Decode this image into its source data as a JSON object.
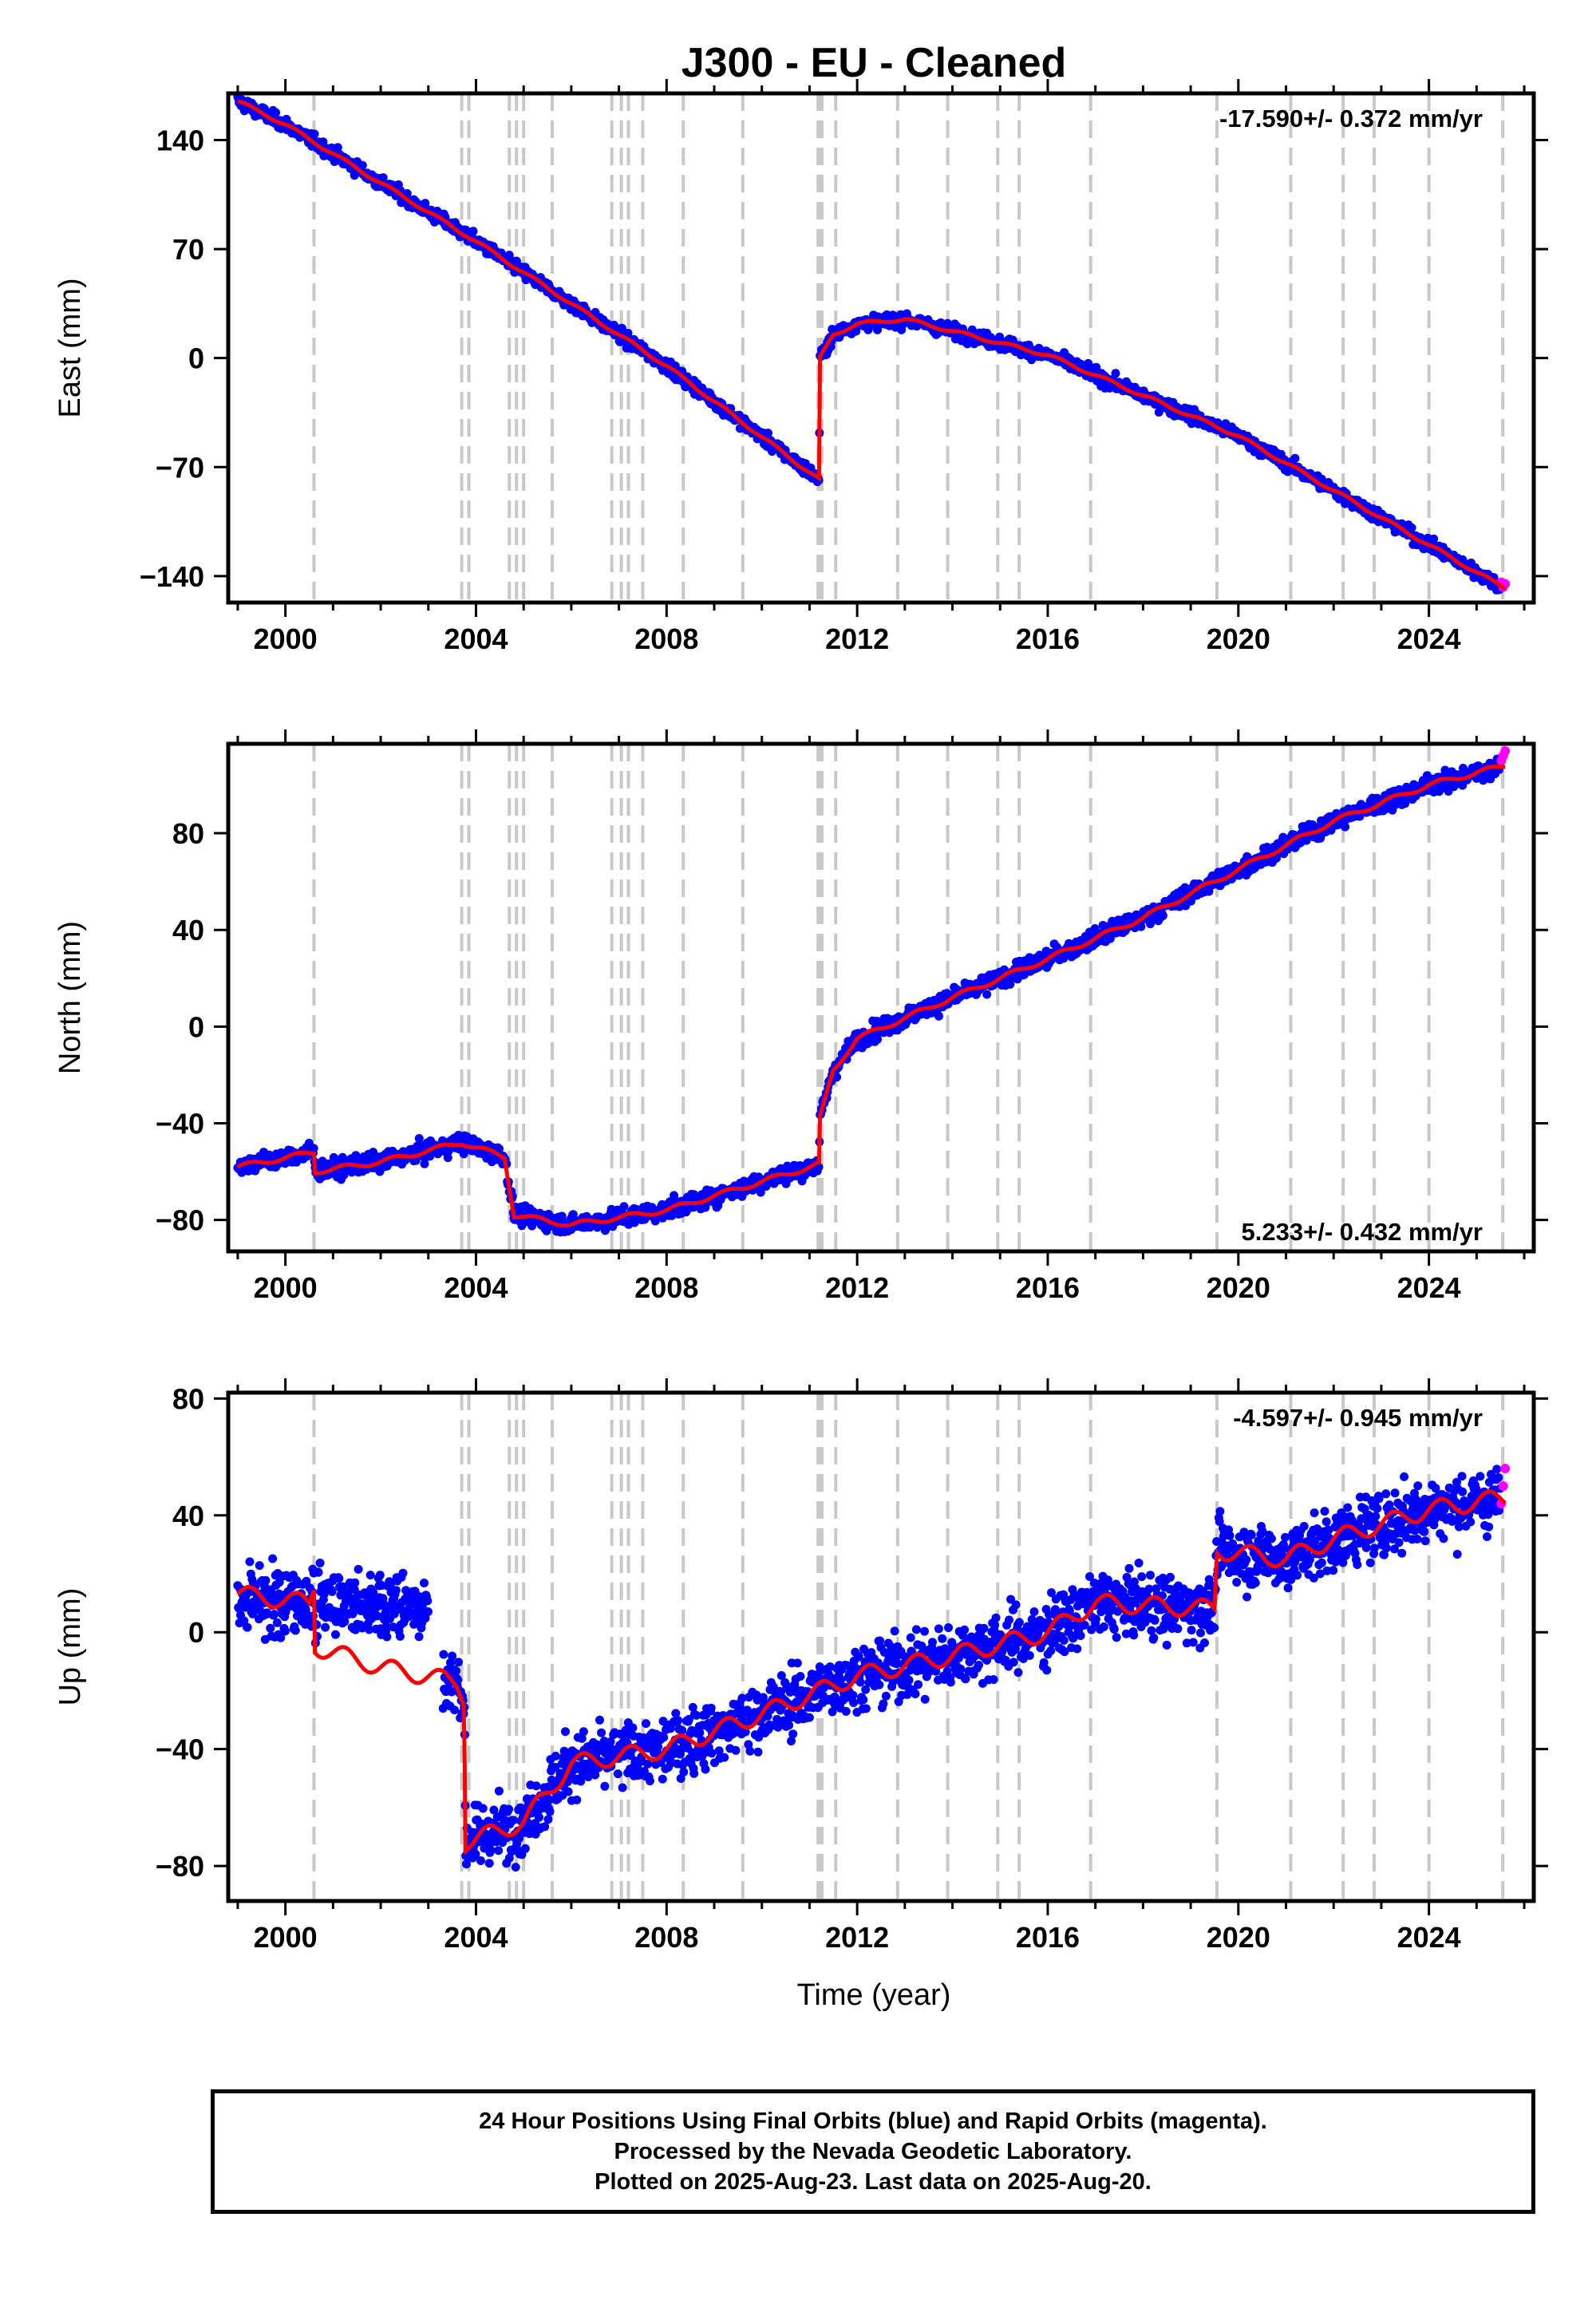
{
  "title": "J300  - EU - Cleaned",
  "xlabel": "Time (year)",
  "colors": {
    "final": "#0000ff",
    "rapid": "#ff00ff",
    "model": "#ff0000",
    "steps": "#c8c8c8",
    "frame": "#000000"
  },
  "caption": {
    "line1": "24 Hour Positions Using Final Orbits (blue) and Rapid Orbits (magenta).",
    "line2": "Processed by the Nevada Geodetic Laboratory.",
    "line3": "Plotted on 2025-Aug-23. Last data on 2025-Aug-20."
  },
  "chart_data": [
    {
      "type": "scatter",
      "component": "east",
      "ylabel": "East (mm)",
      "rate_label": "-17.590+/- 0.372 mm/yr",
      "xlim": [
        1998.8,
        2026.2
      ],
      "ylim": [
        -157,
        170
      ],
      "x_ticks": [
        2000,
        2004,
        2008,
        2012,
        2016,
        2020,
        2024
      ],
      "y_ticks": [
        140,
        70,
        0,
        -70,
        -140
      ],
      "y_tick_labels": [
        "140",
        "70",
        "0",
        "−70",
        "−140"
      ],
      "step_epochs": [
        2000.6,
        2003.7,
        2003.85,
        2004.7,
        2004.85,
        2005.0,
        2005.6,
        2006.85,
        2007.05,
        2007.2,
        2007.5,
        2008.35,
        2009.6,
        2011.18,
        2011.22,
        2011.26,
        2011.55,
        2012.85,
        2013.9,
        2014.95,
        2015.4,
        2016.9,
        2019.55,
        2021.1,
        2022.2,
        2022.85,
        2024.0,
        2025.55
      ],
      "model_anchors": [
        [
          1999.0,
          165
        ],
        [
          2000.0,
          150
        ],
        [
          2004.0,
          75
        ],
        [
          2008.0,
          -5
        ],
        [
          2011.2,
          -78
        ],
        [
          2011.22,
          0
        ],
        [
          2011.5,
          15
        ],
        [
          2012.0,
          22
        ],
        [
          2013.0,
          25
        ],
        [
          2016.0,
          2
        ],
        [
          2020.0,
          -50
        ],
        [
          2024.0,
          -120
        ],
        [
          2025.6,
          -148
        ]
      ],
      "scatter_noise": 3.0,
      "rapid_last": [
        [
          2025.52,
          -144
        ],
        [
          2025.56,
          -147
        ],
        [
          2025.6,
          -145
        ]
      ]
    },
    {
      "type": "scatter",
      "component": "north",
      "ylabel": "North (mm)",
      "rate_label": "5.233+/- 0.432 mm/yr",
      "xlim": [
        1998.8,
        2026.2
      ],
      "ylim": [
        -93,
        117
      ],
      "x_ticks": [
        2000,
        2004,
        2008,
        2012,
        2016,
        2020,
        2024
      ],
      "y_ticks": [
        80,
        40,
        0,
        -40,
        -80
      ],
      "y_tick_labels": [
        "80",
        "40",
        "0",
        "−40",
        "−80"
      ],
      "step_epochs": [
        2000.6,
        2003.7,
        2003.85,
        2004.7,
        2004.85,
        2005.0,
        2005.6,
        2006.85,
        2007.05,
        2007.2,
        2007.5,
        2008.35,
        2009.6,
        2011.18,
        2011.22,
        2011.26,
        2011.55,
        2012.85,
        2013.9,
        2014.95,
        2015.4,
        2016.9,
        2019.55,
        2021.1,
        2022.2,
        2022.85,
        2024.0,
        2025.55
      ],
      "model_anchors": [
        [
          1999.0,
          -58
        ],
        [
          2000.6,
          -52
        ],
        [
          2000.62,
          -60
        ],
        [
          2002.0,
          -56
        ],
        [
          2003.7,
          -48
        ],
        [
          2004.6,
          -54
        ],
        [
          2004.8,
          -78
        ],
        [
          2006.0,
          -82
        ],
        [
          2008.0,
          -76
        ],
        [
          2011.2,
          -57
        ],
        [
          2011.22,
          -38
        ],
        [
          2011.5,
          -18
        ],
        [
          2012.0,
          -5
        ],
        [
          2014.0,
          12
        ],
        [
          2016.0,
          28
        ],
        [
          2018.0,
          45
        ],
        [
          2020.0,
          65
        ],
        [
          2022.0,
          85
        ],
        [
          2024.0,
          100
        ],
        [
          2025.6,
          108
        ]
      ],
      "scatter_noise": 2.6,
      "rapid_last": [
        [
          2025.52,
          110
        ],
        [
          2025.56,
          112
        ],
        [
          2025.6,
          114
        ]
      ]
    },
    {
      "type": "scatter",
      "component": "up",
      "ylabel": "Up (mm)",
      "rate_label": "-4.597+/- 0.945 mm/yr",
      "xlim": [
        1998.8,
        2026.2
      ],
      "ylim": [
        -92,
        82
      ],
      "x_ticks": [
        2000,
        2004,
        2008,
        2012,
        2016,
        2020,
        2024
      ],
      "y_ticks": [
        80,
        40,
        0,
        -40,
        -80
      ],
      "y_tick_labels": [
        "80",
        "40",
        "0",
        "−40",
        "−80"
      ],
      "step_epochs": [
        2000.6,
        2003.7,
        2003.85,
        2004.7,
        2004.85,
        2005.0,
        2005.6,
        2006.85,
        2007.05,
        2007.2,
        2007.5,
        2008.35,
        2009.6,
        2011.18,
        2011.22,
        2011.26,
        2011.55,
        2012.85,
        2013.9,
        2014.95,
        2015.4,
        2016.9,
        2019.55,
        2021.1,
        2022.2,
        2022.85,
        2024.0,
        2025.55
      ],
      "model_anchors": [
        [
          1999.0,
          13
        ],
        [
          2000.5,
          10
        ],
        [
          2000.6,
          16
        ],
        [
          2000.62,
          -5
        ],
        [
          2002.0,
          -12
        ],
        [
          2003.6,
          -17
        ],
        [
          2003.75,
          -22
        ],
        [
          2003.78,
          -72
        ],
        [
          2005.0,
          -65
        ],
        [
          2006.0,
          -45
        ],
        [
          2008.0,
          -40
        ],
        [
          2010.0,
          -28
        ],
        [
          2012.0,
          -15
        ],
        [
          2014.0,
          -8
        ],
        [
          2016.0,
          0
        ],
        [
          2017.0,
          10
        ],
        [
          2019.5,
          8
        ],
        [
          2019.55,
          28
        ],
        [
          2021.0,
          25
        ],
        [
          2022.0,
          32
        ],
        [
          2024.0,
          42
        ],
        [
          2025.6,
          46
        ]
      ],
      "scatter_noise": 7.5,
      "rapid_last": [
        [
          2025.52,
          44
        ],
        [
          2025.56,
          50
        ],
        [
          2025.6,
          56
        ]
      ]
    }
  ]
}
